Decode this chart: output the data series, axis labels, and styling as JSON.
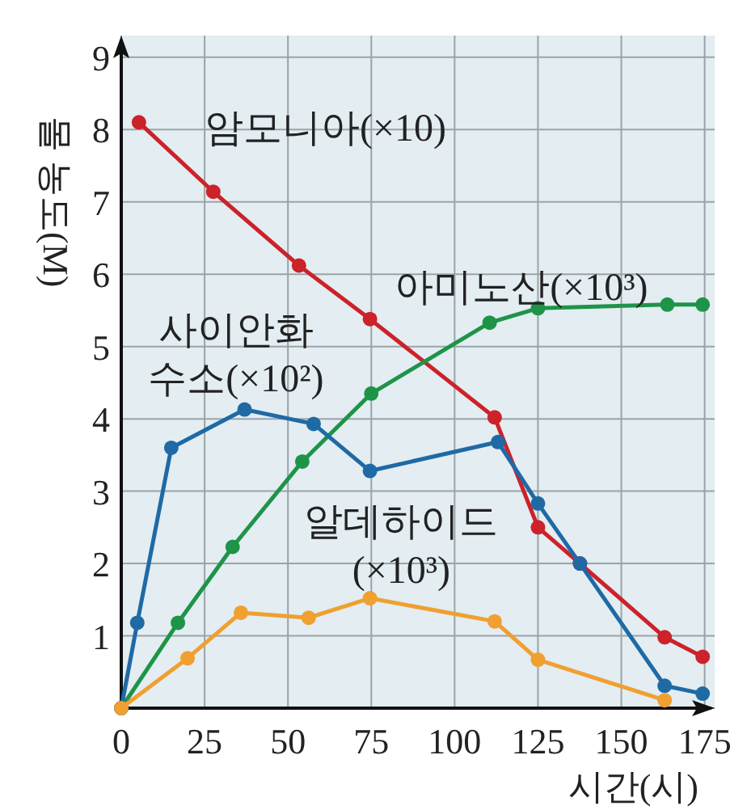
{
  "chart_data": {
    "type": "line",
    "xlabel": "시간(시)",
    "ylabel": "몰 농도(M)",
    "xlim": [
      0,
      178
    ],
    "ylim": [
      0,
      9.3
    ],
    "xticks": [
      0,
      25,
      50,
      75,
      100,
      125,
      150,
      175
    ],
    "yticks": [
      {
        "value": 0,
        "label": null
      },
      1,
      2,
      3,
      4,
      5,
      6,
      7,
      8,
      9
    ],
    "grid": true,
    "marker": "circle",
    "series": [
      {
        "name": "암모니아(×10)",
        "color": "#cc2229",
        "x": [
          5.3,
          27.6,
          53.3,
          74.6,
          112,
          125,
          137.6,
          163,
          174.4
        ],
        "values": [
          8.1,
          7.14,
          6.12,
          5.38,
          4.02,
          2.5,
          2.0,
          0.98,
          0.71
        ]
      },
      {
        "name": "아미노산(×10³)",
        "color": "#1e9448",
        "x": [
          0,
          17,
          33.4,
          54.3,
          75,
          110.5,
          125,
          163.8,
          174.4
        ],
        "values": [
          0,
          1.18,
          2.23,
          3.41,
          4.35,
          5.33,
          5.53,
          5.58,
          5.58
        ]
      },
      {
        "name": "사이안화 수소(×10²)",
        "color": "#1f6aa5",
        "x": [
          0,
          4.8,
          15,
          37,
          57.7,
          74.6,
          113,
          125,
          137.6,
          163,
          174.4
        ],
        "values": [
          0,
          1.18,
          3.6,
          4.13,
          3.93,
          3.28,
          3.68,
          2.83,
          2.0,
          0.31,
          0.2
        ]
      },
      {
        "name": "알데하이드 (×10³)",
        "color": "#f0a030",
        "x": [
          0,
          19.9,
          35.9,
          56.2,
          74.6,
          112,
          125,
          163
        ],
        "values": [
          0,
          0.69,
          1.32,
          1.25,
          1.52,
          1.2,
          0.67,
          0.11
        ]
      }
    ]
  }
}
